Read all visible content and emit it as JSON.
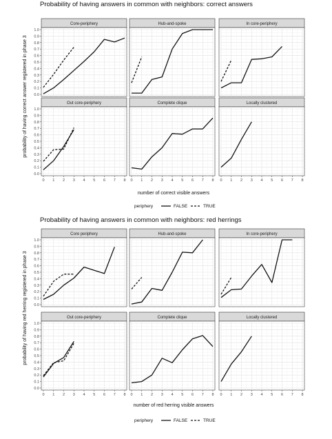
{
  "figure": {
    "legend_title": "periphery",
    "legend_entries": [
      "FALSE",
      "TRUE"
    ]
  },
  "chart_data": [
    {
      "type": "line",
      "title": "Probability of having answers in common with neighbors: correct answers",
      "xlabel": "number of correct visible answers",
      "ylabel": "probability of having correct answer registered in phase 3",
      "xlim": [
        0,
        8
      ],
      "ylim": [
        0,
        1
      ],
      "x_ticks": [
        "0",
        "1",
        "2",
        "3",
        "4",
        "5",
        "6",
        "7",
        "8"
      ],
      "y_ticks": [
        "0.0",
        "0.1",
        "0.2",
        "0.3",
        "0.4",
        "0.5",
        "0.6",
        "0.7",
        "0.8",
        "0.9",
        "1.0"
      ],
      "grid": true,
      "legend_position": "bottom",
      "panels": [
        {
          "name": "Core-periphery",
          "series": [
            {
              "name": "FALSE",
              "x": [
                0,
                1,
                2,
                3,
                4,
                5,
                6,
                7,
                8
              ],
              "y": [
                0.01,
                0.1,
                0.23,
                0.37,
                0.51,
                0.66,
                0.85,
                0.81,
                0.87
              ]
            },
            {
              "name": "TRUE",
              "x": [
                0,
                1,
                2,
                3
              ],
              "y": [
                0.11,
                0.31,
                0.53,
                0.73
              ]
            }
          ]
        },
        {
          "name": "Hub-and-spoke",
          "series": [
            {
              "name": "FALSE",
              "x": [
                0,
                1,
                2,
                3,
                4,
                5,
                6,
                7,
                8
              ],
              "y": [
                0.02,
                0.02,
                0.23,
                0.27,
                0.7,
                0.94,
                1.0,
                1.0,
                1.0
              ]
            },
            {
              "name": "TRUE",
              "x": [
                0,
                1
              ],
              "y": [
                0.18,
                0.58
              ]
            }
          ]
        },
        {
          "name": "In core-periphery",
          "series": [
            {
              "name": "FALSE",
              "x": [
                0,
                1,
                2,
                3,
                4,
                5,
                6
              ],
              "y": [
                0.1,
                0.18,
                0.18,
                0.54,
                0.55,
                0.58,
                0.74
              ]
            },
            {
              "name": "TRUE",
              "x": [
                0,
                1
              ],
              "y": [
                0.2,
                0.53
              ]
            }
          ]
        },
        {
          "name": "Out core-periphery",
          "series": [
            {
              "name": "FALSE",
              "x": [
                0,
                1,
                2,
                3
              ],
              "y": [
                0.06,
                0.2,
                0.42,
                0.68
              ]
            },
            {
              "name": "TRUE",
              "x": [
                0,
                1,
                2,
                3
              ],
              "y": [
                0.19,
                0.37,
                0.38,
                0.71
              ]
            }
          ]
        },
        {
          "name": "Complete clique",
          "series": [
            {
              "name": "FALSE",
              "x": [
                0,
                1,
                2,
                3,
                4,
                5,
                6,
                7,
                8
              ],
              "y": [
                0.09,
                0.07,
                0.26,
                0.4,
                0.62,
                0.61,
                0.69,
                0.69,
                0.86
              ]
            }
          ]
        },
        {
          "name": "Locally clustered",
          "series": [
            {
              "name": "FALSE",
              "x": [
                0,
                1,
                2,
                3
              ],
              "y": [
                0.1,
                0.24,
                0.53,
                0.8
              ]
            }
          ]
        }
      ]
    },
    {
      "type": "line",
      "title": "Probability of having answers in common with neighbors: red herrings",
      "xlabel": "number of red herring visible answers",
      "ylabel": "probability of having red herring registered in phase 3",
      "xlim": [
        0,
        8
      ],
      "ylim": [
        0,
        1
      ],
      "x_ticks": [
        "0",
        "1",
        "2",
        "3",
        "4",
        "5",
        "6",
        "7",
        "8"
      ],
      "y_ticks": [
        "0.0",
        "0.1",
        "0.2",
        "0.3",
        "0.4",
        "0.5",
        "0.6",
        "0.7",
        "0.8",
        "0.9",
        "1.0"
      ],
      "grid": true,
      "legend_position": "bottom",
      "panels": [
        {
          "name": "Core periphery",
          "series": [
            {
              "name": "FALSE",
              "x": [
                0,
                1,
                2,
                3,
                4,
                5,
                6,
                7
              ],
              "y": [
                0.08,
                0.16,
                0.3,
                0.41,
                0.58,
                0.53,
                0.48,
                0.89
              ]
            },
            {
              "name": "TRUE",
              "x": [
                0,
                1,
                2,
                3
              ],
              "y": [
                0.13,
                0.36,
                0.47,
                0.47
              ]
            }
          ]
        },
        {
          "name": "Hub-and-spoke",
          "series": [
            {
              "name": "FALSE",
              "x": [
                0,
                1,
                2,
                3,
                4,
                5,
                6,
                7
              ],
              "y": [
                0.01,
                0.04,
                0.25,
                0.22,
                0.5,
                0.81,
                0.8,
                1.0
              ]
            },
            {
              "name": "TRUE",
              "x": [
                0,
                1
              ],
              "y": [
                0.24,
                0.42
              ]
            }
          ]
        },
        {
          "name": "In core-periphery",
          "series": [
            {
              "name": "FALSE",
              "x": [
                0,
                1,
                2,
                3,
                4,
                5,
                6,
                7
              ],
              "y": [
                0.11,
                0.23,
                0.24,
                0.44,
                0.62,
                0.34,
                1.0,
                1.0
              ]
            },
            {
              "name": "TRUE",
              "x": [
                0,
                1
              ],
              "y": [
                0.16,
                0.42
              ]
            }
          ]
        },
        {
          "name": "Out core-periphery",
          "series": [
            {
              "name": "FALSE",
              "x": [
                0,
                1,
                2,
                3
              ],
              "y": [
                0.17,
                0.38,
                0.47,
                0.72
              ]
            },
            {
              "name": "TRUE",
              "x": [
                0,
                1,
                2,
                3
              ],
              "y": [
                0.19,
                0.39,
                0.42,
                0.69
              ]
            }
          ]
        },
        {
          "name": "Complete clique",
          "series": [
            {
              "name": "FALSE",
              "x": [
                0,
                1,
                2,
                3,
                4,
                5,
                6,
                7,
                8
              ],
              "y": [
                0.08,
                0.1,
                0.2,
                0.46,
                0.39,
                0.59,
                0.76,
                0.81,
                0.64
              ]
            }
          ]
        },
        {
          "name": "Locally clustered",
          "series": [
            {
              "name": "FALSE",
              "x": [
                0,
                1,
                2,
                3
              ],
              "y": [
                0.1,
                0.37,
                0.56,
                0.8
              ]
            }
          ]
        }
      ]
    }
  ]
}
